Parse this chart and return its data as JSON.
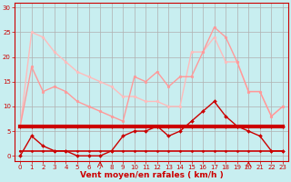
{
  "bg_color": "#c8eef0",
  "grid_color": "#b0b0b0",
  "xlabel": "Vent moyen/en rafales ( km/h )",
  "xlabel_color": "#cc0000",
  "xlabel_fontsize": 6.5,
  "tick_color": "#cc0000",
  "ylim": [
    -1,
    31
  ],
  "xlim": [
    -0.5,
    23.5
  ],
  "yticks": [
    0,
    5,
    10,
    15,
    20,
    25,
    30
  ],
  "xticks": [
    0,
    1,
    2,
    3,
    4,
    5,
    6,
    7,
    8,
    9,
    10,
    11,
    12,
    13,
    14,
    15,
    16,
    17,
    18,
    19,
    20,
    21,
    22,
    23
  ],
  "line1": {
    "x": [
      0,
      1,
      2,
      3,
      4,
      5,
      6,
      7,
      8,
      9,
      10,
      11,
      12,
      13,
      14,
      15,
      16,
      17,
      18,
      19,
      20,
      21,
      22,
      23
    ],
    "y": [
      6,
      25,
      24,
      21,
      19,
      17,
      16,
      15,
      14,
      12,
      12,
      11,
      11,
      10,
      10,
      21,
      21,
      24,
      19,
      19,
      13,
      13,
      8,
      10
    ],
    "color": "#ffbbbb",
    "linewidth": 1.0,
    "marker": "o",
    "markersize": 2.0
  },
  "line2": {
    "x": [
      0,
      1,
      2,
      3,
      4,
      5,
      6,
      7,
      8,
      9,
      10,
      11,
      12,
      13,
      14,
      15,
      16,
      17,
      18,
      19,
      20,
      21,
      22,
      23
    ],
    "y": [
      6,
      18,
      13,
      14,
      13,
      11,
      10,
      9,
      8,
      7,
      16,
      15,
      17,
      14,
      16,
      16,
      21,
      26,
      24,
      19,
      13,
      13,
      8,
      10
    ],
    "color": "#ff9999",
    "linewidth": 1.0,
    "marker": "o",
    "markersize": 2.0
  },
  "line3_thick": {
    "x": [
      0,
      1,
      2,
      3,
      4,
      5,
      6,
      7,
      8,
      9,
      10,
      11,
      12,
      13,
      14,
      15,
      16,
      17,
      18,
      19,
      20,
      21,
      22,
      23
    ],
    "y": [
      6,
      6,
      6,
      6,
      6,
      6,
      6,
      6,
      6,
      6,
      6,
      6,
      6,
      6,
      6,
      6,
      6,
      6,
      6,
      6,
      6,
      6,
      6,
      6
    ],
    "color": "#cc0000",
    "linewidth": 3.0,
    "marker": "D",
    "markersize": 2.0
  },
  "line4_thin": {
    "x": [
      0,
      1,
      2,
      3,
      4,
      5,
      6,
      7,
      8,
      9,
      10,
      11,
      12,
      13,
      14,
      15,
      16,
      17,
      18,
      19,
      20,
      21,
      22,
      23
    ],
    "y": [
      0,
      4,
      2,
      1,
      1,
      0,
      0,
      0,
      1,
      4,
      5,
      5,
      6,
      4,
      5,
      7,
      9,
      11,
      8,
      6,
      5,
      4,
      1,
      1
    ],
    "color": "#cc0000",
    "linewidth": 1.0,
    "marker": "D",
    "markersize": 2.0
  },
  "line5_flat": {
    "x": [
      0,
      1,
      2,
      3,
      4,
      5,
      6,
      7,
      8,
      9,
      10,
      11,
      12,
      13,
      14,
      15,
      16,
      17,
      18,
      19,
      20,
      21,
      22,
      23
    ],
    "y": [
      1,
      1,
      1,
      1,
      1,
      1,
      1,
      1,
      1,
      1,
      1,
      1,
      1,
      1,
      1,
      1,
      1,
      1,
      1,
      1,
      1,
      1,
      1,
      1
    ],
    "color": "#cc0000",
    "linewidth": 1.2,
    "marker": "D",
    "markersize": 1.5
  },
  "arrow_angles": [
    225,
    90,
    270,
    270,
    270,
    270,
    315,
    0,
    45,
    45,
    45,
    45,
    45,
    45,
    45,
    225,
    225,
    270,
    315,
    315,
    0,
    45,
    45,
    45
  ]
}
